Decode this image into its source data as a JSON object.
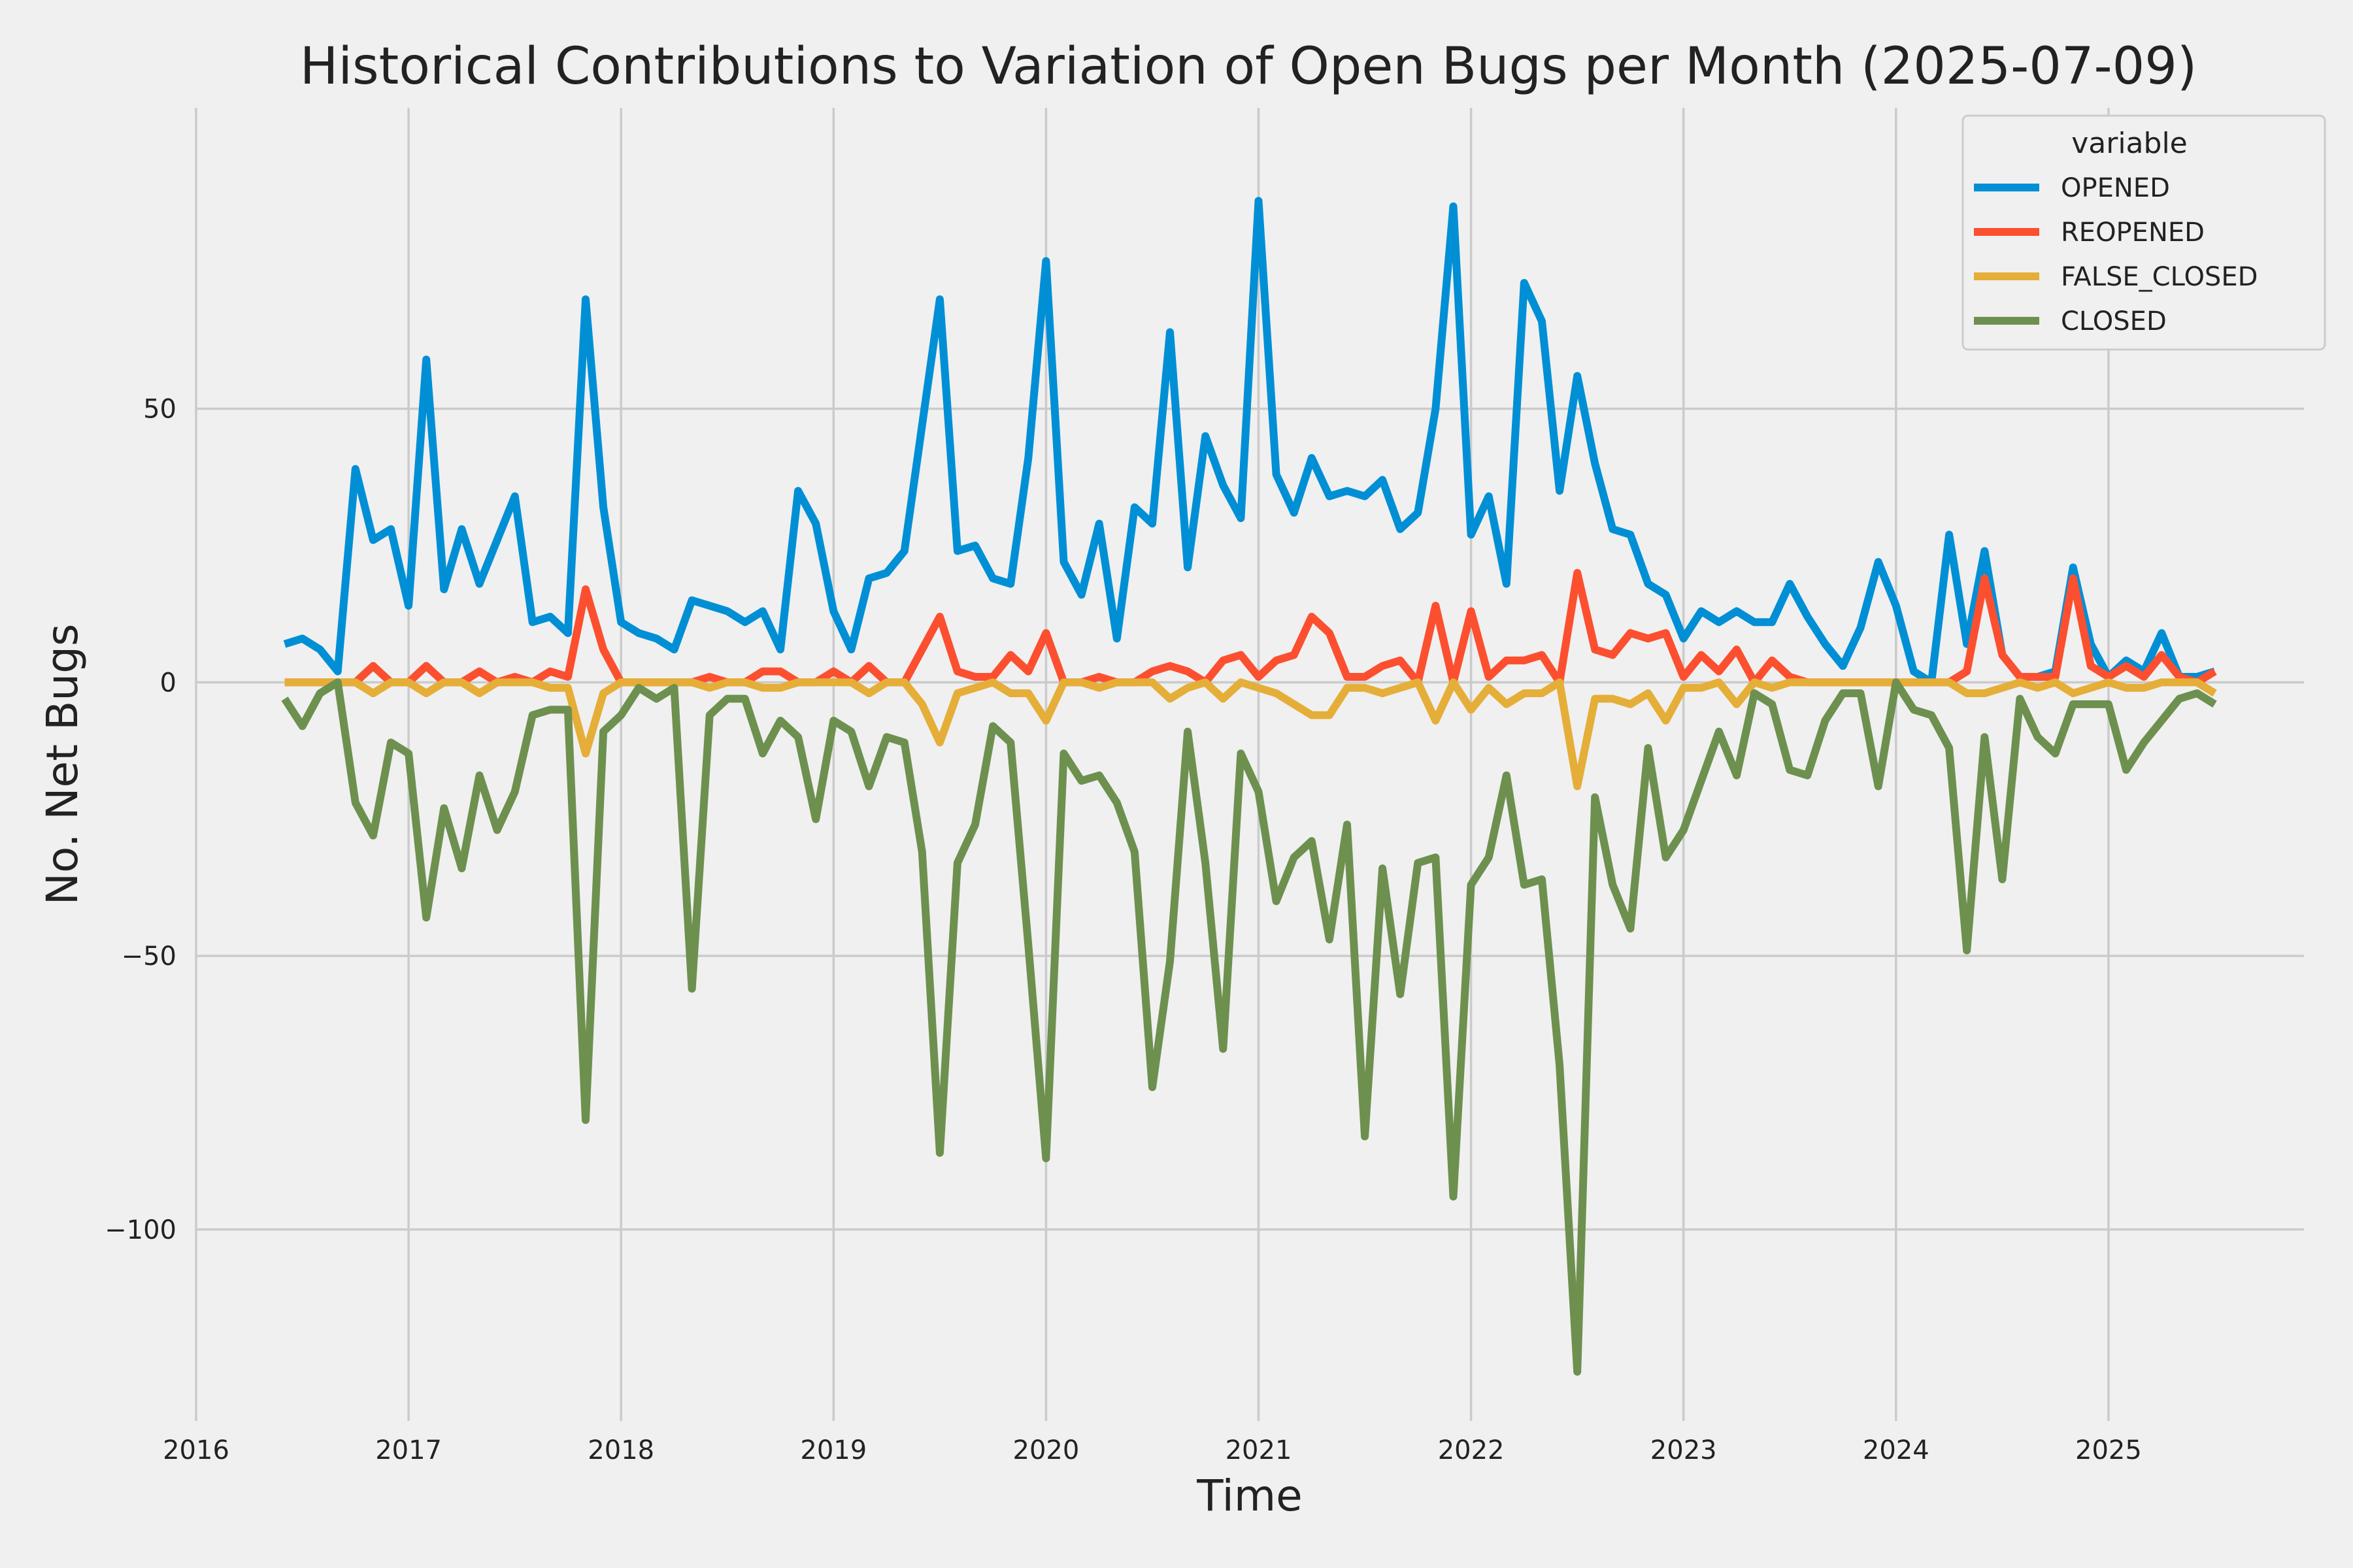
{
  "chart_data": {
    "type": "line",
    "title": "Historical Contributions to Variation of Open Bugs per Month (2025-07-09)",
    "xlabel": "Time",
    "ylabel": "No. Net Bugs",
    "xlim": [
      2016.0,
      2025.92
    ],
    "ylim": [
      -135,
      105
    ],
    "xticks": [
      "2016",
      "2017",
      "2018",
      "2019",
      "2020",
      "2021",
      "2022",
      "2023",
      "2024",
      "2025"
    ],
    "yticks": [
      {
        "value": 50,
        "label": "50"
      },
      {
        "value": 0,
        "label": "0"
      },
      {
        "value": -50,
        "label": "−50"
      },
      {
        "value": -100,
        "label": "−100"
      }
    ],
    "grid": true,
    "legend": {
      "title": "variable",
      "position": "top-right"
    },
    "x_start": "2016-06",
    "x_step": "month",
    "series": [
      {
        "name": "OPENED",
        "color": "#008fd5",
        "values": [
          7,
          8,
          6,
          2,
          39,
          26,
          28,
          14,
          59,
          17,
          28,
          18,
          26,
          34,
          11,
          12,
          9,
          70,
          32,
          11,
          9,
          8,
          6,
          15,
          14,
          13,
          11,
          13,
          6,
          35,
          29,
          13,
          6,
          19,
          20,
          24,
          47,
          70,
          24,
          25,
          19,
          18,
          41,
          77,
          22,
          16,
          29,
          8,
          32,
          29,
          64,
          21,
          45,
          36,
          30,
          88,
          38,
          31,
          41,
          34,
          35,
          34,
          37,
          28,
          31,
          50,
          87,
          27,
          34,
          18,
          73,
          66,
          35,
          56,
          40,
          28,
          27,
          18,
          16,
          8,
          13,
          11,
          13,
          11,
          11,
          18,
          12,
          7,
          3,
          10,
          22,
          14,
          2,
          0,
          27,
          7,
          24,
          5,
          1,
          1,
          2,
          21,
          7,
          1,
          4,
          2,
          9,
          1,
          1,
          2
        ]
      },
      {
        "name": "REOPENED",
        "color": "#fc4f30",
        "values": [
          0,
          0,
          0,
          0,
          0,
          3,
          0,
          0,
          3,
          0,
          0,
          2,
          0,
          1,
          0,
          2,
          1,
          17,
          6,
          0,
          0,
          0,
          0,
          0,
          1,
          0,
          0,
          2,
          2,
          0,
          0,
          2,
          0,
          3,
          0,
          0,
          6,
          12,
          2,
          1,
          1,
          5,
          2,
          9,
          0,
          0,
          1,
          0,
          0,
          2,
          3,
          2,
          0,
          4,
          5,
          1,
          4,
          5,
          12,
          9,
          1,
          1,
          3,
          4,
          0,
          14,
          0,
          13,
          1,
          4,
          4,
          5,
          0,
          20,
          6,
          5,
          9,
          8,
          9,
          1,
          5,
          2,
          6,
          0,
          4,
          1,
          0,
          0,
          0,
          0,
          0,
          0,
          0,
          0,
          0,
          2,
          19,
          5,
          1,
          1,
          1,
          19,
          3,
          1,
          3,
          1,
          5,
          1,
          0,
          2
        ]
      },
      {
        "name": "FALSE_CLOSED",
        "color": "#e5ae38",
        "values": [
          0,
          0,
          0,
          0,
          0,
          -2,
          0,
          0,
          -2,
          0,
          0,
          -2,
          0,
          0,
          0,
          -1,
          -1,
          -13,
          -2,
          0,
          0,
          0,
          0,
          0,
          -1,
          0,
          0,
          -1,
          -1,
          0,
          0,
          0,
          0,
          -2,
          0,
          0,
          -4,
          -11,
          -2,
          -1,
          0,
          -2,
          -2,
          -7,
          0,
          0,
          -1,
          0,
          0,
          0,
          -3,
          -1,
          0,
          -3,
          0,
          -1,
          -2,
          -4,
          -6,
          -6,
          -1,
          -1,
          -2,
          -1,
          0,
          -7,
          0,
          -5,
          -1,
          -4,
          -2,
          -2,
          0,
          -19,
          -3,
          -3,
          -4,
          -2,
          -7,
          -1,
          -1,
          0,
          -4,
          0,
          -1,
          0,
          0,
          0,
          0,
          0,
          0,
          0,
          0,
          0,
          0,
          -2,
          -2,
          -1,
          0,
          -1,
          0,
          -2,
          -1,
          0,
          -1,
          -1,
          0,
          0,
          0,
          -2
        ]
      },
      {
        "name": "CLOSED",
        "color": "#6d904f",
        "values": [
          -3,
          -8,
          -2,
          0,
          -22,
          -28,
          -11,
          -13,
          -43,
          -23,
          -34,
          -17,
          -27,
          -20,
          -6,
          -5,
          -5,
          -80,
          -9,
          -6,
          -1,
          -3,
          -1,
          -56,
          -6,
          -3,
          -3,
          -13,
          -7,
          -10,
          -25,
          -7,
          -9,
          -19,
          -10,
          -11,
          -31,
          -86,
          -33,
          -26,
          -8,
          -11,
          -48,
          -87,
          -13,
          -18,
          -17,
          -22,
          -31,
          -74,
          -51,
          -9,
          -33,
          -67,
          -13,
          -20,
          -40,
          -32,
          -29,
          -47,
          -26,
          -83,
          -34,
          -57,
          -33,
          -32,
          -94,
          -37,
          -32,
          -17,
          -37,
          -36,
          -70,
          -126,
          -21,
          -37,
          -45,
          -12,
          -32,
          -27,
          -18,
          -9,
          -17,
          -2,
          -4,
          -16,
          -17,
          -7,
          -2,
          -2,
          -19,
          0,
          -5,
          -6,
          -12,
          -49,
          -10,
          -36,
          -3,
          -10,
          -13,
          -4,
          -4,
          -4,
          -16,
          -11,
          -7,
          -3,
          -2,
          -4
        ]
      }
    ]
  }
}
